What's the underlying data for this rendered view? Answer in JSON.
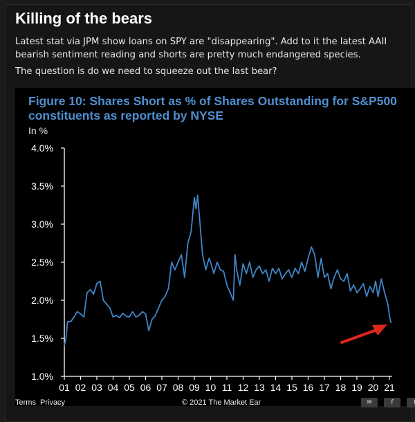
{
  "post": {
    "title": "Killing of the bears",
    "paragraphs": [
      "Latest stat via JPM show loans on SPY are \"disappearing\". Add to it the latest AAII bearish sentiment reading and shorts are pretty much endangered species.",
      "The question is do we need to squeeze out the last bear?"
    ]
  },
  "chart_data": {
    "type": "line",
    "title": "Figure 10: Shares Short as % of Shares Outstanding for S&P500 constituents as reported by NYSE",
    "ylabel": "In %",
    "xlabel": "",
    "ylim": [
      1.0,
      4.0
    ],
    "yticks": [
      "1.0%",
      "1.5%",
      "2.0%",
      "2.5%",
      "3.0%",
      "3.5%",
      "4.0%"
    ],
    "xticks": [
      "01",
      "02",
      "03",
      "04",
      "05",
      "06",
      "07",
      "08",
      "09",
      "10",
      "11",
      "12",
      "13",
      "14",
      "15",
      "16",
      "17",
      "18",
      "19",
      "20",
      "21"
    ],
    "x_unit": "year (20xx), ticks at year start",
    "series": [
      {
        "color": "#3f86c8",
        "x": [
          2001.0,
          2001.1,
          2001.2,
          2001.4,
          2001.6,
          2001.8,
          2002.0,
          2002.2,
          2002.4,
          2002.6,
          2002.8,
          2003.0,
          2003.2,
          2003.4,
          2003.6,
          2003.8,
          2004.0,
          2004.2,
          2004.4,
          2004.6,
          2004.8,
          2005.0,
          2005.2,
          2005.4,
          2005.6,
          2005.8,
          2006.0,
          2006.2,
          2006.4,
          2006.6,
          2006.8,
          2007.0,
          2007.2,
          2007.4,
          2007.6,
          2007.8,
          2008.0,
          2008.2,
          2008.4,
          2008.6,
          2008.8,
          2009.0,
          2009.1,
          2009.2,
          2009.35,
          2009.5,
          2009.7,
          2009.9,
          2010.0,
          2010.2,
          2010.4,
          2010.6,
          2010.8,
          2011.0,
          2011.2,
          2011.4,
          2011.5,
          2011.6,
          2011.8,
          2012.0,
          2012.2,
          2012.4,
          2012.6,
          2012.8,
          2013.0,
          2013.2,
          2013.4,
          2013.6,
          2013.8,
          2014.0,
          2014.2,
          2014.4,
          2014.6,
          2014.8,
          2015.0,
          2015.2,
          2015.4,
          2015.6,
          2015.8,
          2016.0,
          2016.2,
          2016.4,
          2016.6,
          2016.8,
          2017.0,
          2017.2,
          2017.4,
          2017.6,
          2017.8,
          2018.0,
          2018.2,
          2018.4,
          2018.6,
          2018.8,
          2019.0,
          2019.2,
          2019.4,
          2019.6,
          2019.8,
          2020.0,
          2020.15,
          2020.3,
          2020.5,
          2020.7,
          2020.9,
          2021.0,
          2021.1
        ],
        "values": [
          1.4,
          1.5,
          1.72,
          1.72,
          1.78,
          1.85,
          1.82,
          1.78,
          2.1,
          2.14,
          2.08,
          2.22,
          2.25,
          2.0,
          1.95,
          1.9,
          1.78,
          1.8,
          1.77,
          1.83,
          1.79,
          1.78,
          1.85,
          1.78,
          1.8,
          1.85,
          1.82,
          1.6,
          1.75,
          1.8,
          1.9,
          2.0,
          2.05,
          2.15,
          2.5,
          2.4,
          2.5,
          2.6,
          2.3,
          2.75,
          2.9,
          3.35,
          3.2,
          3.38,
          3.0,
          2.6,
          2.4,
          2.55,
          2.5,
          2.35,
          2.5,
          2.4,
          2.38,
          2.2,
          2.1,
          2.0,
          2.6,
          2.4,
          2.2,
          2.48,
          2.35,
          2.5,
          2.3,
          2.4,
          2.45,
          2.35,
          2.4,
          2.25,
          2.42,
          2.35,
          2.42,
          2.28,
          2.35,
          2.4,
          2.3,
          2.42,
          2.35,
          2.5,
          2.38,
          2.55,
          2.7,
          2.6,
          2.3,
          2.55,
          2.3,
          2.35,
          2.15,
          2.3,
          2.4,
          2.28,
          2.25,
          2.35,
          2.12,
          2.2,
          2.1,
          2.15,
          2.22,
          2.05,
          2.18,
          2.1,
          2.25,
          2.05,
          2.28,
          2.1,
          1.95,
          1.8,
          1.7
        ]
      }
    ]
  },
  "footer": {
    "links": [
      "Terms",
      "Privacy"
    ],
    "copyright": "© 2021 The Market Ear",
    "share": [
      {
        "icon": "email-icon",
        "glyph": "✉"
      },
      {
        "icon": "facebook-icon",
        "glyph": "f"
      },
      {
        "icon": "twitter-icon",
        "glyph": "t"
      }
    ]
  }
}
